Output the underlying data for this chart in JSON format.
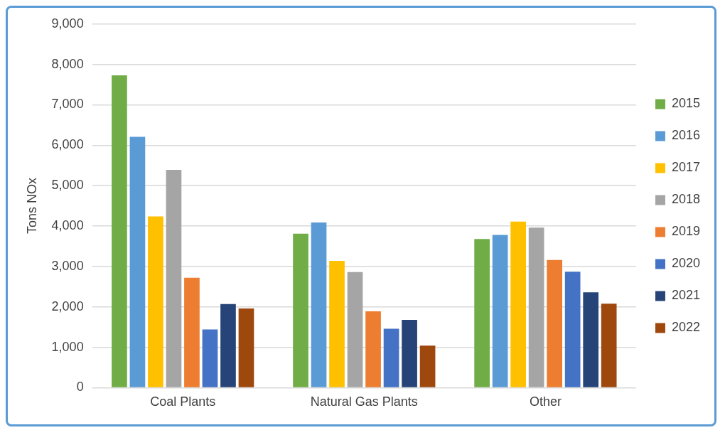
{
  "chart_data": {
    "type": "bar",
    "ylabel": "Tons NOx",
    "categories": [
      "Coal Plants",
      "Natural Gas Plants",
      "Other"
    ],
    "series": [
      {
        "name": "2015",
        "color": "#70ad47",
        "values": [
          7730,
          3810,
          3680
        ]
      },
      {
        "name": "2016",
        "color": "#5b9bd5",
        "values": [
          6210,
          4090,
          3780
        ]
      },
      {
        "name": "2017",
        "color": "#ffc000",
        "values": [
          4240,
          3140,
          4110
        ]
      },
      {
        "name": "2018",
        "color": "#a5a5a5",
        "values": [
          5390,
          2860,
          3960
        ]
      },
      {
        "name": "2019",
        "color": "#ed7d31",
        "values": [
          2720,
          1890,
          3160
        ]
      },
      {
        "name": "2020",
        "color": "#4472c4",
        "values": [
          1440,
          1460,
          2870
        ]
      },
      {
        "name": "2021",
        "color": "#264478",
        "values": [
          2070,
          1680,
          2360
        ]
      },
      {
        "name": "2022",
        "color": "#9e480e",
        "values": [
          1960,
          1040,
          2080
        ]
      }
    ],
    "ylim": [
      0,
      9000
    ],
    "yticks": [
      {
        "value": 0,
        "label": "0"
      },
      {
        "value": 1000,
        "label": "1,000"
      },
      {
        "value": 2000,
        "label": "2,000"
      },
      {
        "value": 3000,
        "label": "3,000"
      },
      {
        "value": 4000,
        "label": "4,000"
      },
      {
        "value": 5000,
        "label": "5,000"
      },
      {
        "value": 6000,
        "label": "6,000"
      },
      {
        "value": 7000,
        "label": "7,000"
      },
      {
        "value": 8000,
        "label": "8,000"
      },
      {
        "value": 9000,
        "label": "9,000"
      }
    ],
    "grid": "y",
    "legend": "right"
  }
}
